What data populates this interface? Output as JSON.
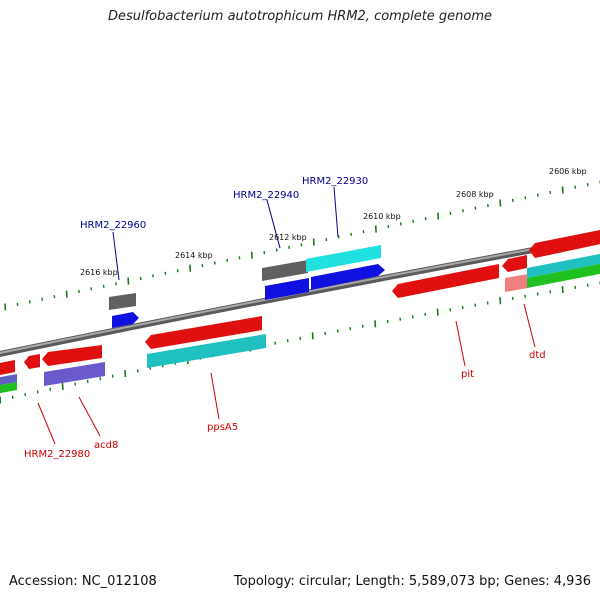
{
  "title": "Desulfobacterium autotrophicum HRM2, complete genome",
  "footer": {
    "accession": "Accession: NC_012108",
    "summary": "Topology: circular; Length: 5,589,073 bp; Genes: 4,936"
  },
  "colors": {
    "backbone": "#8a8a8a",
    "tick": "#1a7a1a",
    "forward_label": "#00008b",
    "reverse_label": "#cc0000"
  },
  "scale_labels": [
    "2616 kbp",
    "2614 kbp",
    "2612 kbp",
    "2610 kbp",
    "2608 kbp",
    "2606 kbp"
  ],
  "forward_labels": [
    "HRM2_22960",
    "HRM2_22940",
    "HRM2_22930"
  ],
  "reverse_labels": [
    "HRM2_22980",
    "acd8",
    "ppsA5",
    "pit",
    "dtd"
  ]
}
